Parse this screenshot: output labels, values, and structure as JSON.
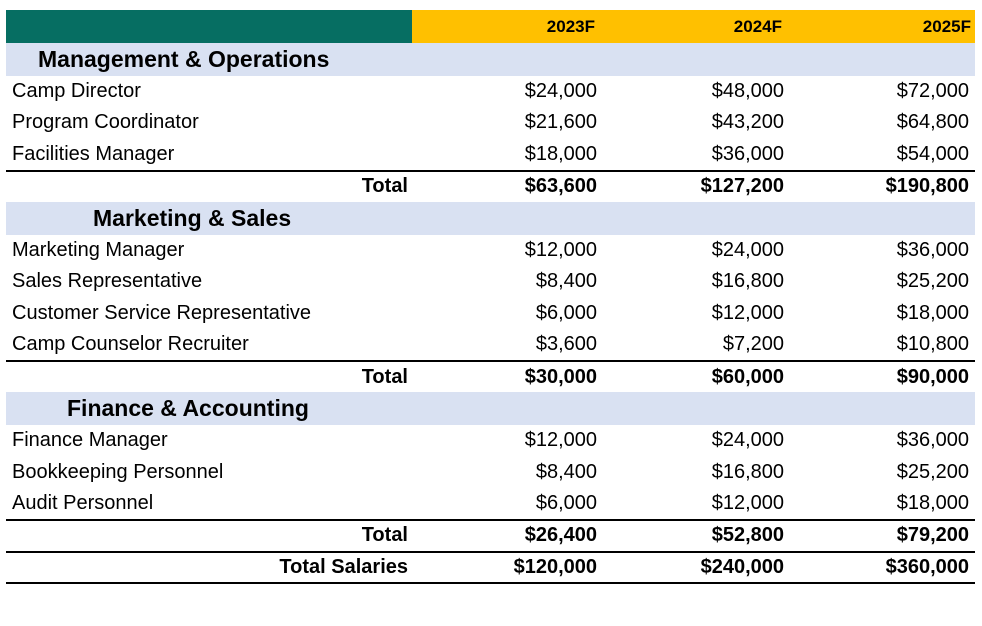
{
  "header": {
    "columns": [
      "2023F",
      "2024F",
      "2025F"
    ]
  },
  "sections": [
    {
      "title": "Management & Operations",
      "rows": [
        {
          "label": "Camp Director",
          "values": [
            "$24,000",
            "$48,000",
            "$72,000"
          ]
        },
        {
          "label": "Program Coordinator",
          "values": [
            "$21,600",
            "$43,200",
            "$64,800"
          ]
        },
        {
          "label": "Facilities Manager",
          "values": [
            "$18,000",
            "$36,000",
            "$54,000"
          ]
        }
      ],
      "total_label": "Total",
      "totals": [
        "$63,600",
        "$127,200",
        "$190,800"
      ]
    },
    {
      "title": "Marketing & Sales",
      "rows": [
        {
          "label": "Marketing Manager",
          "values": [
            "$12,000",
            "$24,000",
            "$36,000"
          ]
        },
        {
          "label": "Sales Representative",
          "values": [
            "$8,400",
            "$16,800",
            "$25,200"
          ]
        },
        {
          "label": "Customer Service Representative",
          "values": [
            "$6,000",
            "$12,000",
            "$18,000"
          ]
        },
        {
          "label": "Camp Counselor Recruiter",
          "values": [
            "$3,600",
            "$7,200",
            "$10,800"
          ]
        }
      ],
      "total_label": "Total",
      "totals": [
        "$30,000",
        "$60,000",
        "$90,000"
      ]
    },
    {
      "title": "Finance & Accounting",
      "rows": [
        {
          "label": "Finance Manager",
          "values": [
            "$12,000",
            "$24,000",
            "$36,000"
          ]
        },
        {
          "label": "Bookkeeping Personnel",
          "values": [
            "$8,400",
            "$16,800",
            "$25,200"
          ]
        },
        {
          "label": "Audit Personnel",
          "values": [
            "$6,000",
            "$12,000",
            "$18,000"
          ]
        }
      ],
      "total_label": "Total",
      "totals": [
        "$26,400",
        "$52,800",
        "$79,200"
      ]
    }
  ],
  "grand_total": {
    "label": "Total Salaries",
    "values": [
      "$120,000",
      "$240,000",
      "$360,000"
    ]
  },
  "colors": {
    "header_label_bg": "#066E62",
    "header_year_bg": "#FFC000",
    "section_bg": "#D9E1F2"
  }
}
